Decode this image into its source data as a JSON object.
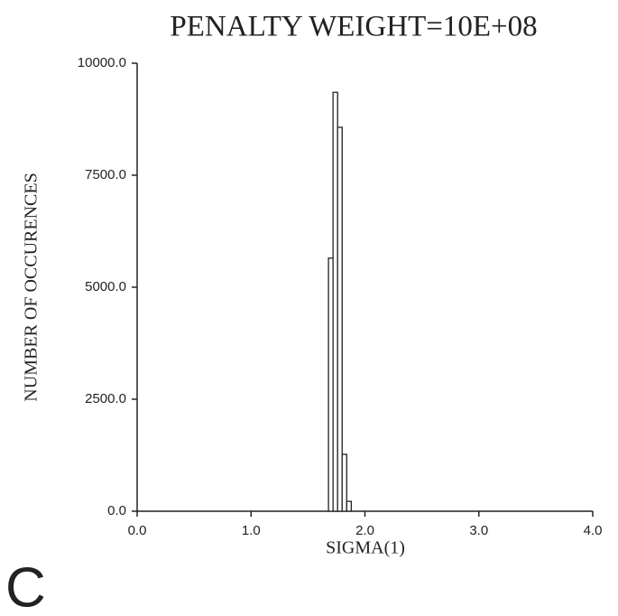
{
  "chart_data": {
    "type": "histogram",
    "title": "PENALTY WEIGHT=10E+08",
    "x_label": "SIGMA(1)",
    "y_label": "NUMBER OF OCCURENCES",
    "panel_label": "C",
    "bins": [
      1.68,
      1.72,
      1.76,
      1.8,
      1.84,
      1.88
    ],
    "values": [
      5650,
      9350,
      8570,
      1270,
      220
    ],
    "color": "#ffffff",
    "edge_color": "#222222",
    "xlim": [
      0,
      4
    ],
    "ylim": [
      0,
      10000
    ],
    "xticks": [
      {
        "value": 0,
        "label": "0.0"
      },
      {
        "value": 1,
        "label": "1.0"
      },
      {
        "value": 2,
        "label": "2.0"
      },
      {
        "value": 3,
        "label": "3.0"
      },
      {
        "value": 4,
        "label": "4.0"
      }
    ],
    "yticks": [
      {
        "value": 0,
        "label": "0.0"
      },
      {
        "value": 2500,
        "label": "2500.0"
      },
      {
        "value": 5000,
        "label": "5000.0"
      },
      {
        "value": 7500,
        "label": "7500.0"
      },
      {
        "value": 10000,
        "label": "10000.0"
      }
    ],
    "grid": false
  }
}
